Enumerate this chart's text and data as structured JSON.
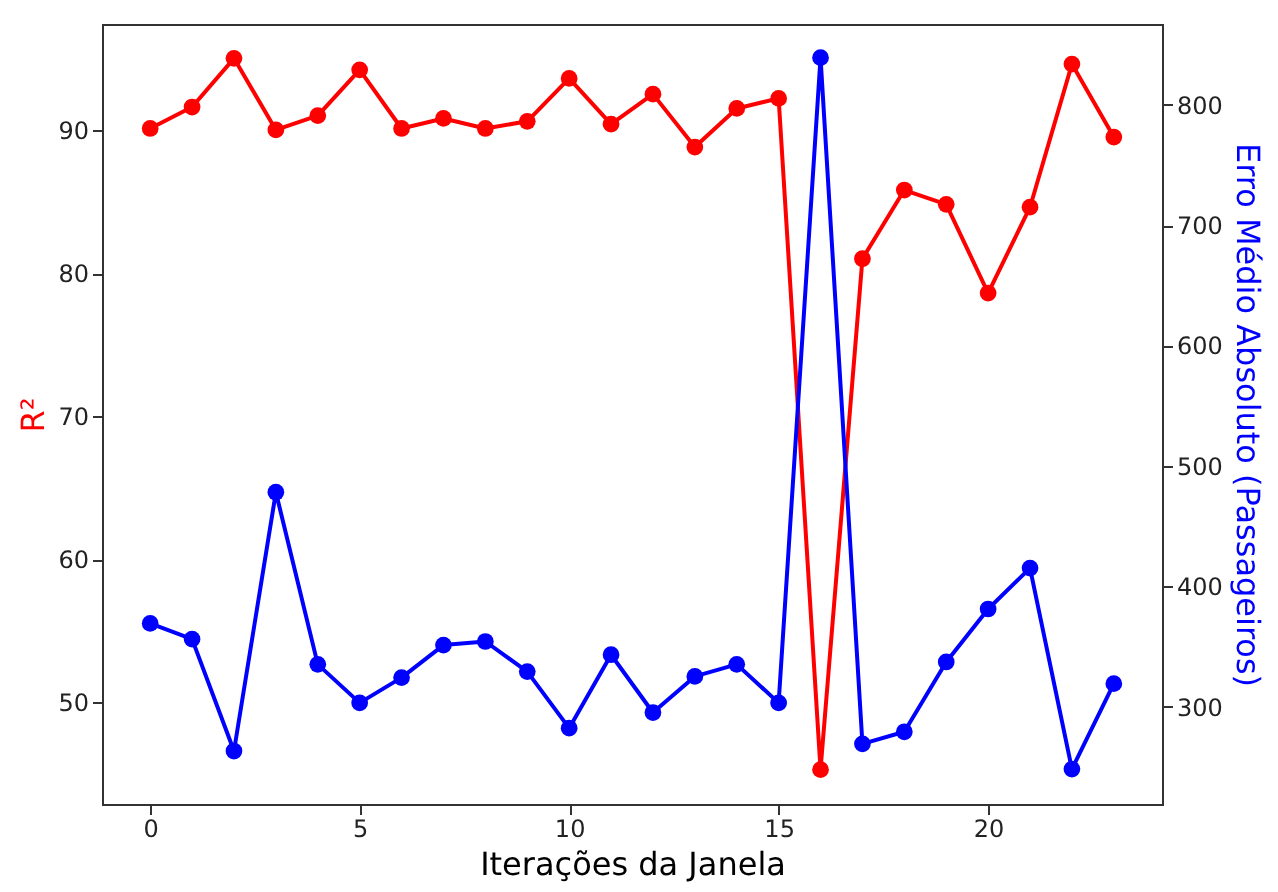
{
  "chart_data": {
    "type": "line",
    "xlabel": "Iterações da Janela",
    "ylabel": "R²",
    "y2label": "Erro Médio Absoluto (Passageiros)",
    "x": [
      0,
      1,
      2,
      3,
      4,
      5,
      6,
      7,
      8,
      9,
      10,
      11,
      12,
      13,
      14,
      15,
      16,
      17,
      18,
      19,
      20,
      21,
      22,
      23
    ],
    "series": [
      {
        "color": "#ff0000",
        "values": [
          90.1,
          91.6,
          95.0,
          90.0,
          91.0,
          94.2,
          90.1,
          90.8,
          90.1,
          90.6,
          93.6,
          90.4,
          92.5,
          88.8,
          91.5,
          92.2,
          45.3,
          81.0,
          85.8,
          84.8,
          78.6,
          84.6,
          94.6,
          89.5
        ]
      },
      {
        "color": "#0000ff",
        "axis": "y2",
        "values": [
          369,
          356,
          263,
          478,
          335,
          303,
          324,
          351,
          354,
          329,
          282,
          343,
          295,
          325,
          335,
          303,
          839,
          269,
          279,
          337,
          381,
          415,
          248,
          319
        ]
      }
    ],
    "xlim": [
      -1.15,
      24.15
    ],
    "xticks": [
      0,
      5,
      10,
      15,
      20
    ],
    "ylim": [
      42.9,
      97.4
    ],
    "yticks": [
      50,
      60,
      70,
      80,
      90
    ],
    "y2lim": [
      219,
      867
    ],
    "y2ticks": [
      300,
      400,
      500,
      600,
      700,
      800
    ],
    "marker": "circle",
    "line_style": "solid",
    "grid": false
  }
}
